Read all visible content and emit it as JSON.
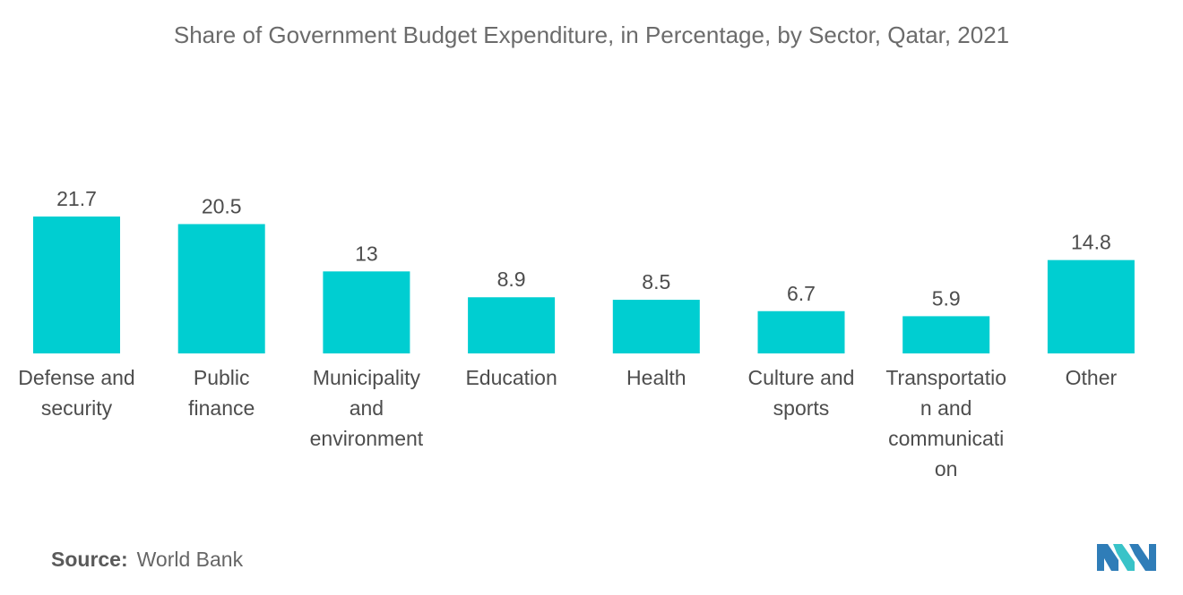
{
  "title": "Share of Government Budget Expenditure, in Percentage, by Sector, Qatar, 2021",
  "source": {
    "label": "Source:",
    "value": "World Bank"
  },
  "colors": {
    "bar": "#00ced1",
    "text": "#4d4d4d",
    "title": "#6b6b6b"
  },
  "chart_data": {
    "type": "bar",
    "categories": [
      [
        "Defense and",
        "security"
      ],
      [
        "Public",
        "finance"
      ],
      [
        "Municipality",
        "and",
        "environment"
      ],
      [
        "Education"
      ],
      [
        "Health"
      ],
      [
        "Culture and",
        "sports"
      ],
      [
        "Transportatio",
        "n and",
        "communicati",
        "on"
      ],
      [
        "Other"
      ]
    ],
    "values": [
      21.7,
      20.5,
      13,
      8.9,
      8.5,
      6.7,
      5.9,
      14.8
    ],
    "value_labels": [
      "21.7",
      "20.5",
      "13",
      "8.9",
      "8.5",
      "6.7",
      "5.9",
      "14.8"
    ],
    "ylim": [
      0,
      21.7
    ],
    "grid": false,
    "legend": "none"
  }
}
